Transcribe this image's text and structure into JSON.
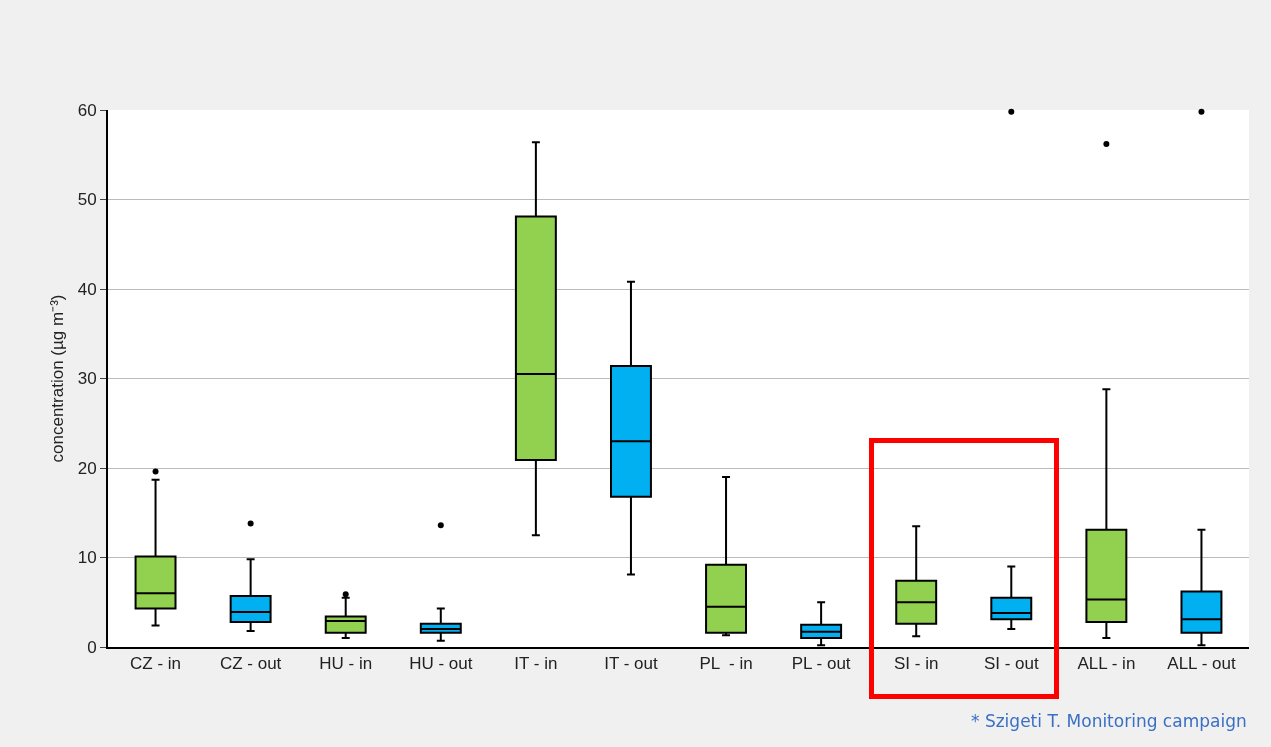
{
  "chart_data": {
    "type": "box",
    "ylabel": "concentration (µg m⁻³)",
    "categories": [
      "CZ - in",
      "CZ - out",
      "HU - in",
      "HU - out",
      "IT - in",
      "IT - out",
      "PL  - in",
      "PL - out",
      "SI - in",
      "SI - out",
      "ALL - in",
      "ALL - out"
    ],
    "colors": [
      "#92d050",
      "#00b0f0",
      "#92d050",
      "#00b0f0",
      "#92d050",
      "#00b0f0",
      "#92d050",
      "#00b0f0",
      "#92d050",
      "#00b0f0",
      "#92d050",
      "#00b0f0"
    ],
    "boxes": [
      {
        "low": 2.4,
        "q1": 4.3,
        "median": 6.0,
        "q3": 10.1,
        "high": 18.7,
        "outliers": [
          19.6
        ]
      },
      {
        "low": 1.8,
        "q1": 2.8,
        "median": 3.9,
        "q3": 5.7,
        "high": 9.8,
        "outliers": [
          13.8
        ]
      },
      {
        "low": 1.0,
        "q1": 1.6,
        "median": 2.9,
        "q3": 3.4,
        "high": 5.5,
        "outliers": [
          5.9
        ]
      },
      {
        "low": 0.7,
        "q1": 1.6,
        "median": 2.0,
        "q3": 2.6,
        "high": 4.3,
        "outliers": [
          13.6
        ]
      },
      {
        "low": 12.5,
        "q1": 20.9,
        "median": 30.5,
        "q3": 48.1,
        "high": 56.4
      },
      {
        "low": 8.1,
        "q1": 16.8,
        "median": 23.0,
        "q3": 31.4,
        "high": 40.8
      },
      {
        "low": 1.3,
        "q1": 1.6,
        "median": 4.5,
        "q3": 9.2,
        "high": 19.0
      },
      {
        "low": 0.2,
        "q1": 1.0,
        "median": 1.7,
        "q3": 2.5,
        "high": 5.0
      },
      {
        "low": 1.2,
        "q1": 2.6,
        "median": 5.0,
        "q3": 7.4,
        "high": 13.5
      },
      {
        "low": 2.0,
        "q1": 3.1,
        "median": 3.8,
        "q3": 5.5,
        "high": 9.0,
        "outliers": [
          59.8
        ]
      },
      {
        "low": 1.0,
        "q1": 2.8,
        "median": 5.3,
        "q3": 13.1,
        "high": 28.8,
        "outliers": [
          56.2
        ]
      },
      {
        "low": 0.2,
        "q1": 1.6,
        "median": 3.1,
        "q3": 6.2,
        "high": 13.1,
        "outliers": [
          59.8
        ]
      }
    ],
    "ylim": [
      0,
      60
    ],
    "yticks": [
      0,
      10,
      20,
      30,
      40,
      50,
      60
    ],
    "grid": "y",
    "annotations": [
      "* Szigeti T. Monitoring campaign"
    ]
  }
}
